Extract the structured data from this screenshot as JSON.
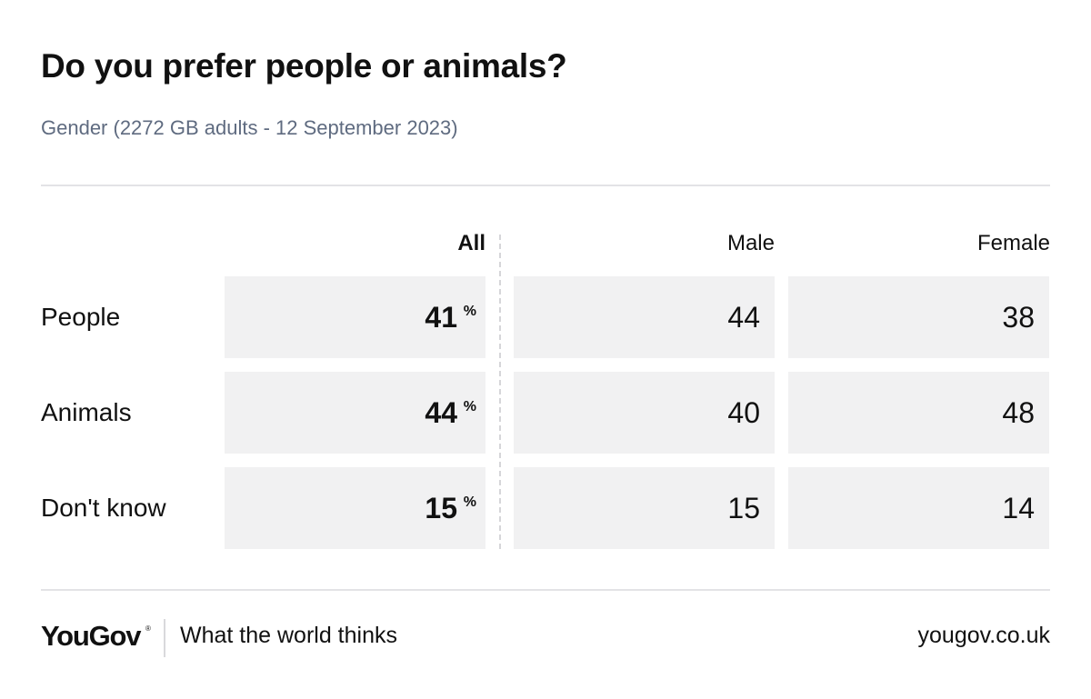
{
  "title": "Do you prefer people or animals?",
  "subtitle": "Gender (2272 GB adults - 12 September 2023)",
  "chart_data": {
    "type": "table",
    "title": "Do you prefer people or animals?",
    "subtitle": "Gender (2272 GB adults - 12 September 2023)",
    "columns": [
      "All",
      "Male",
      "Female"
    ],
    "unit": "%",
    "rows": [
      {
        "label": "People",
        "values": [
          "41",
          "44",
          "38"
        ]
      },
      {
        "label": "Animals",
        "values": [
          "44",
          "40",
          "48"
        ]
      },
      {
        "label": "Don't know",
        "values": [
          "15",
          "15",
          "14"
        ]
      }
    ]
  },
  "footer": {
    "brand": "YouGov",
    "brand_mark": "®",
    "tagline": "What the world thinks",
    "site": "yougov.co.uk"
  },
  "colors": {
    "cell_background": "#f1f1f2",
    "subtitle": "#5f6b80",
    "rule": "#e3e3e6"
  }
}
